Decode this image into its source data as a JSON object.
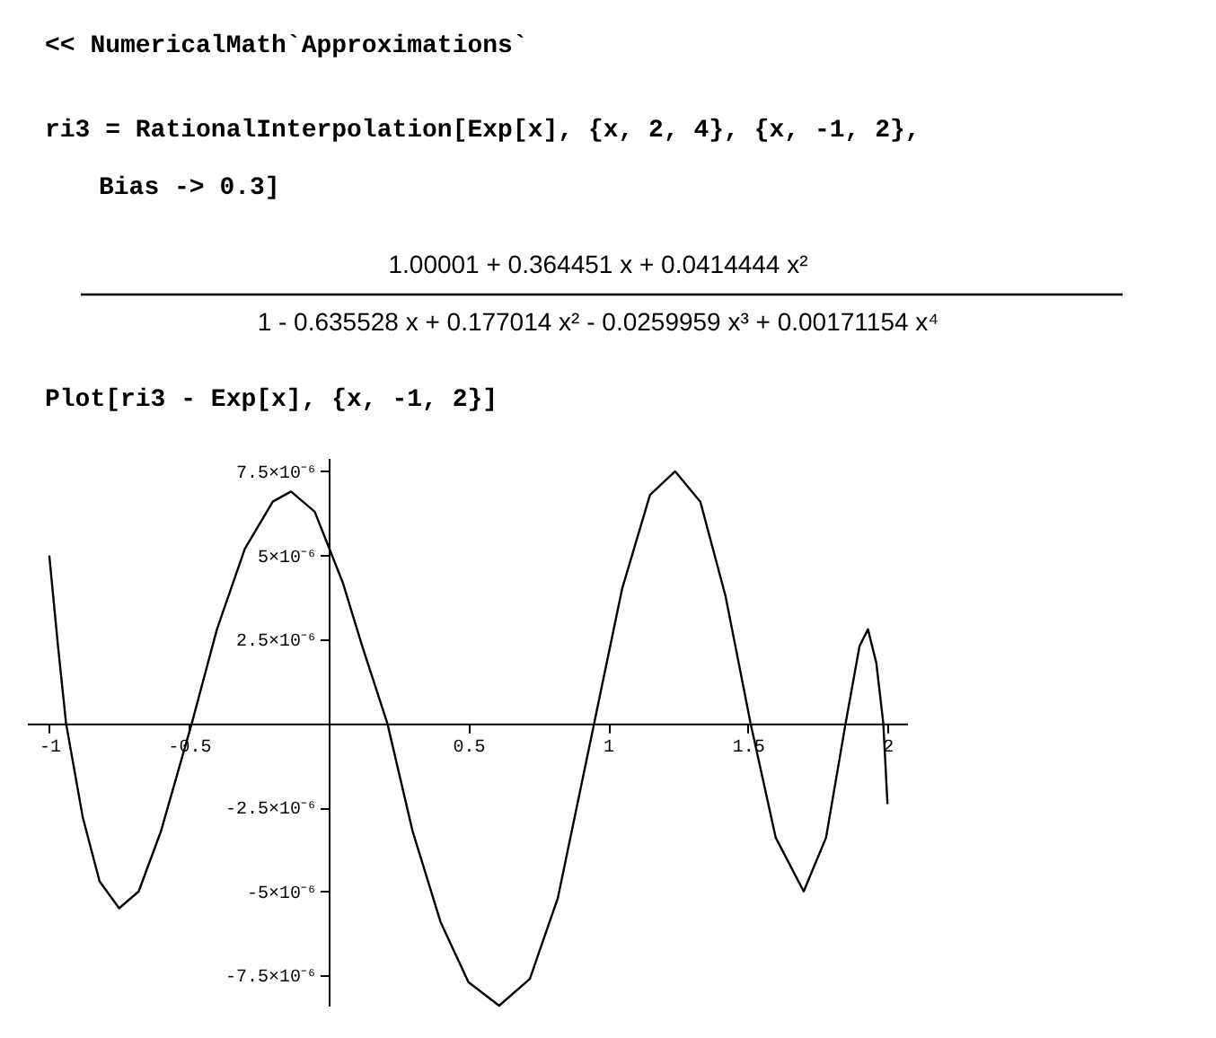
{
  "chart_data": {
    "type": "line",
    "annotations": [
      "<< NumericalMath`Approximations`",
      "ri3 = RationalInterpolation[Exp[x], {x, 2, 4}, {x, -1, 2},",
      "Bias -> 0.3]",
      "1.00001 + 0.364451 x + 0.0414444 x²",
      "1 - 0.635528 x + 0.177014 x² - 0.0259959 x³ + 0.00171154 x⁴",
      "Plot[ri3 - Exp[x], {x, -1, 2}]"
    ],
    "x": [
      -1,
      -0.97,
      -0.94,
      -0.88,
      -0.82,
      -0.75,
      -0.68,
      -0.6,
      -0.49,
      -0.4,
      -0.3,
      -0.2,
      -0.135,
      -0.05,
      0.05,
      0.12,
      0.21,
      0.3,
      0.4,
      0.5,
      0.61,
      0.72,
      0.82,
      0.95,
      1.05,
      1.15,
      1.24,
      1.33,
      1.42,
      1.51,
      1.6,
      1.7,
      1.78,
      1.85,
      1.9,
      1.93,
      1.96,
      1.985,
      2.0
    ],
    "series": [
      {
        "color": "#000000",
        "values": [
          5e-06,
          2.4e-06,
          0,
          -2.8e-06,
          -4.7e-06,
          -5.5e-06,
          -5e-06,
          -3.2e-06,
          0,
          2.8e-06,
          5.2e-06,
          6.6e-06,
          6.9e-06,
          6.3e-06,
          4.2e-06,
          2.3e-06,
          0,
          -3.2e-06,
          -5.9e-06,
          -7.7e-06,
          -8.4e-06,
          -7.6e-06,
          -5.2e-06,
          0,
          4e-06,
          6.8e-06,
          7.5e-06,
          6.6e-06,
          3.8e-06,
          0,
          -3.4e-06,
          -5e-06,
          -3.4e-06,
          0,
          2.3e-06,
          2.8e-06,
          1.8e-06,
          0,
          -2.4e-06
        ]
      }
    ],
    "xlim": [
      -1.08,
      2.07
    ],
    "ylim": [
      -8.4e-06,
      7.9e-06
    ],
    "xticks": [
      -1,
      -0.5,
      0.5,
      1,
      1.5,
      2
    ],
    "yticks": [
      {
        "value": -7.5e-06,
        "label": "-7.5×10⁻⁶"
      },
      {
        "value": -5e-06,
        "label": "-5×10⁻⁶"
      },
      {
        "value": -2.5e-06,
        "label": "-2.5×10⁻⁶"
      },
      {
        "value": 2.5e-06,
        "label": "2.5×10⁻⁶"
      },
      {
        "value": 5e-06,
        "label": "5×10⁻⁶"
      },
      {
        "value": 7.5e-06,
        "label": "7.5×10⁻⁶"
      }
    ],
    "grid": false,
    "marker": "none",
    "line_style": "solid"
  }
}
